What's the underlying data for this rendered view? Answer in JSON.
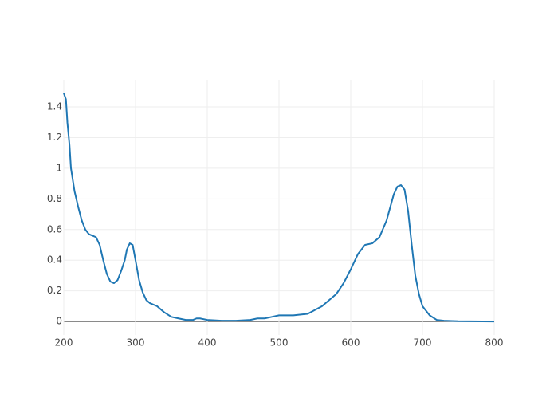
{
  "chart_data": {
    "type": "line",
    "x": [
      200,
      203,
      205,
      208,
      210,
      215,
      220,
      225,
      230,
      235,
      240,
      245,
      250,
      255,
      260,
      265,
      270,
      275,
      280,
      285,
      288,
      292,
      296,
      300,
      305,
      310,
      315,
      320,
      330,
      340,
      350,
      360,
      370,
      380,
      385,
      390,
      400,
      420,
      440,
      460,
      470,
      480,
      490,
      500,
      520,
      540,
      560,
      580,
      590,
      600,
      610,
      620,
      630,
      640,
      650,
      660,
      665,
      670,
      675,
      680,
      685,
      690,
      695,
      700,
      710,
      720,
      730,
      750,
      800
    ],
    "series": [
      {
        "color": "#1f77b4",
        "values": [
          1.49,
          1.45,
          1.3,
          1.15,
          1.0,
          0.85,
          0.75,
          0.66,
          0.6,
          0.57,
          0.56,
          0.55,
          0.5,
          0.4,
          0.31,
          0.26,
          0.25,
          0.27,
          0.33,
          0.4,
          0.47,
          0.51,
          0.5,
          0.4,
          0.27,
          0.19,
          0.14,
          0.12,
          0.1,
          0.06,
          0.03,
          0.02,
          0.01,
          0.01,
          0.02,
          0.02,
          0.01,
          0.005,
          0.005,
          0.01,
          0.02,
          0.02,
          0.03,
          0.04,
          0.04,
          0.05,
          0.1,
          0.18,
          0.25,
          0.34,
          0.44,
          0.5,
          0.51,
          0.55,
          0.66,
          0.83,
          0.88,
          0.89,
          0.86,
          0.72,
          0.5,
          0.3,
          0.18,
          0.1,
          0.04,
          0.01,
          0.005,
          0.002,
          0
        ]
      }
    ],
    "xlim": [
      200,
      800
    ],
    "xticks": [
      200,
      300,
      400,
      500,
      600,
      700,
      800
    ],
    "ylim": [
      -0.088,
      1.577
    ],
    "yticks": [
      0,
      0.2,
      0.4,
      0.6,
      0.8,
      1,
      1.2,
      1.4
    ],
    "grid": true
  }
}
